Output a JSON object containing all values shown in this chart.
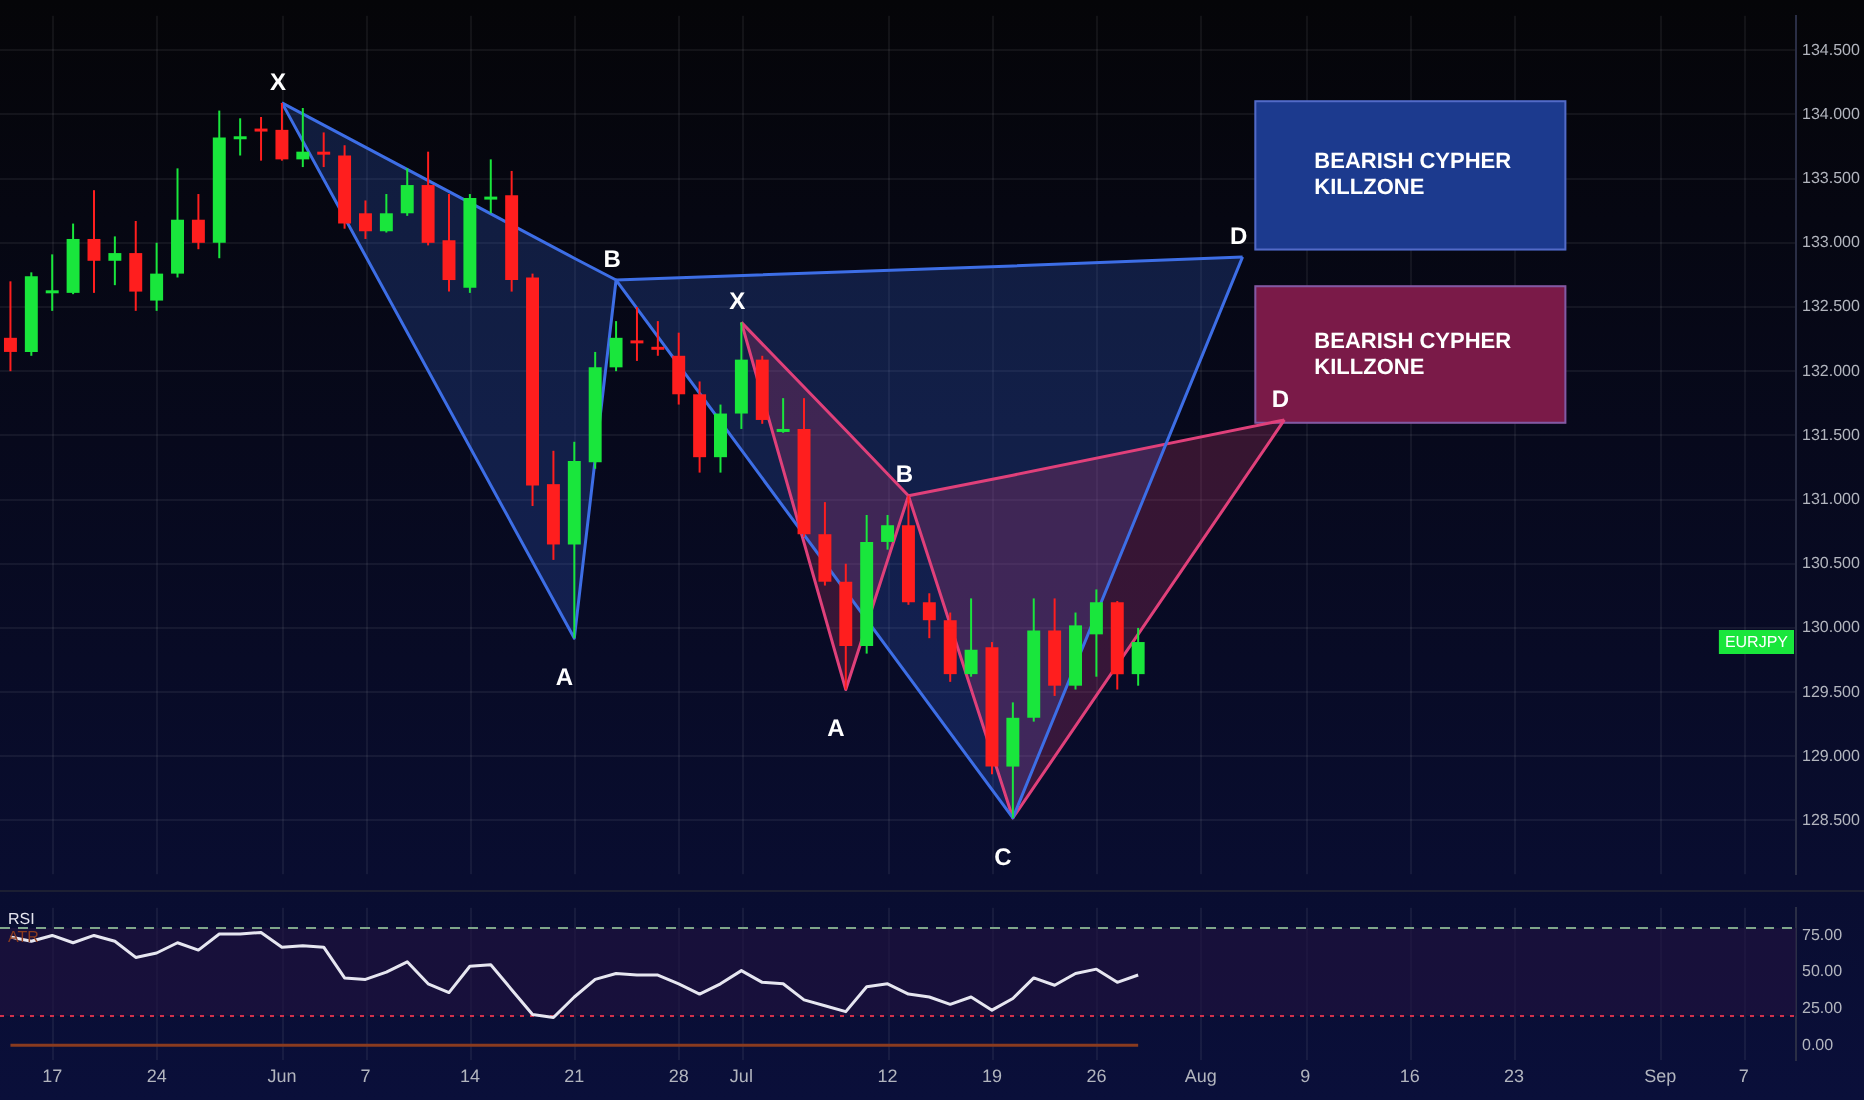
{
  "chart_data": [
    {
      "type": "candlestick",
      "categories": [
        null,
        null,
        null,
        null,
        null,
        null,
        null,
        null,
        null,
        null,
        null,
        null,
        null,
        null,
        null,
        null,
        null,
        null,
        null,
        null,
        null,
        null,
        null,
        null,
        null,
        null,
        null,
        null,
        null,
        null,
        null,
        null,
        null,
        null,
        null,
        null,
        null,
        null,
        null,
        null,
        null,
        null,
        null,
        null,
        null,
        null,
        null,
        null,
        null,
        null,
        null,
        null,
        null,
        null,
        null,
        null,
        null,
        null,
        null,
        null,
        null,
        null,
        null,
        null,
        null,
        null,
        null,
        null,
        null,
        null,
        null,
        null,
        null,
        null,
        null,
        null,
        null,
        null,
        null,
        null,
        null,
        null,
        null,
        null,
        null,
        null
      ],
      "ohlc": [
        [
          132.26,
          132.7,
          132.0,
          132.15
        ],
        [
          132.15,
          132.77,
          132.12,
          132.74
        ],
        [
          132.62,
          132.91,
          132.47,
          132.63
        ],
        [
          132.61,
          133.15,
          132.6,
          133.03
        ],
        [
          133.03,
          133.41,
          132.61,
          132.86
        ],
        [
          132.86,
          133.05,
          132.67,
          132.92
        ],
        [
          132.92,
          133.17,
          132.47,
          132.62
        ],
        [
          132.55,
          133.0,
          132.47,
          132.76
        ],
        [
          132.76,
          133.58,
          132.73,
          133.18
        ],
        [
          133.18,
          133.38,
          132.95,
          133.0
        ],
        [
          133.0,
          134.03,
          132.88,
          133.82
        ],
        [
          133.82,
          133.97,
          133.68,
          133.83
        ],
        [
          133.89,
          133.98,
          133.64,
          133.88
        ],
        [
          133.88,
          134.09,
          133.64,
          133.65
        ],
        [
          133.65,
          134.05,
          133.59,
          133.71
        ],
        [
          133.71,
          133.86,
          133.59,
          133.69
        ],
        [
          133.68,
          133.76,
          133.11,
          133.15
        ],
        [
          133.23,
          133.33,
          133.03,
          133.09
        ],
        [
          133.09,
          133.38,
          133.08,
          133.23
        ],
        [
          133.23,
          133.58,
          133.21,
          133.45
        ],
        [
          133.45,
          133.71,
          132.98,
          133.0
        ],
        [
          133.02,
          133.38,
          132.62,
          132.71
        ],
        [
          132.65,
          133.38,
          132.61,
          133.35
        ],
        [
          133.35,
          133.65,
          133.23,
          133.36
        ],
        [
          133.37,
          133.56,
          132.62,
          132.71
        ],
        [
          132.73,
          132.76,
          130.95,
          131.11
        ],
        [
          131.12,
          131.38,
          130.53,
          130.65
        ],
        [
          130.65,
          131.45,
          129.92,
          131.3
        ],
        [
          131.29,
          132.15,
          131.24,
          132.03
        ],
        [
          132.03,
          132.39,
          132.0,
          132.26
        ],
        [
          132.24,
          132.5,
          132.08,
          132.22
        ],
        [
          132.19,
          132.39,
          132.12,
          132.17
        ],
        [
          132.12,
          132.3,
          131.74,
          131.82
        ],
        [
          131.82,
          131.92,
          131.21,
          131.33
        ],
        [
          131.33,
          131.74,
          131.21,
          131.67
        ],
        [
          131.67,
          132.38,
          131.55,
          132.09
        ],
        [
          132.09,
          132.12,
          131.59,
          131.62
        ],
        [
          131.54,
          131.79,
          131.52,
          131.55
        ],
        [
          131.55,
          131.79,
          130.71,
          130.73
        ],
        [
          130.73,
          130.98,
          130.33,
          130.36
        ],
        [
          130.36,
          130.5,
          129.52,
          129.86
        ],
        [
          129.86,
          130.88,
          129.8,
          130.67
        ],
        [
          130.67,
          130.88,
          130.61,
          130.8
        ],
        [
          130.8,
          131.03,
          130.18,
          130.2
        ],
        [
          130.2,
          130.27,
          129.92,
          130.06
        ],
        [
          130.06,
          130.12,
          129.58,
          129.64
        ],
        [
          129.64,
          130.23,
          129.62,
          129.83
        ],
        [
          129.85,
          129.89,
          128.86,
          128.92
        ],
        [
          128.92,
          129.42,
          128.52,
          129.3
        ],
        [
          129.3,
          130.23,
          129.27,
          129.98
        ],
        [
          129.98,
          130.23,
          129.47,
          129.55
        ],
        [
          129.55,
          130.12,
          129.52,
          130.02
        ],
        [
          129.95,
          130.3,
          129.62,
          130.2
        ],
        [
          130.2,
          130.21,
          129.52,
          129.64
        ],
        [
          129.64,
          130.0,
          129.55,
          129.89
        ],
        null,
        null,
        null,
        null,
        null,
        null,
        null,
        null,
        null,
        null,
        null,
        null,
        null,
        null,
        null,
        null,
        null,
        null,
        null,
        null,
        null,
        null,
        null,
        null,
        null,
        null,
        null,
        null,
        null,
        null,
        null
      ],
      "series": [
        {
          "type": "line",
          "color": "#3d6ee6",
          "values": [
            null,
            null,
            null,
            null,
            null,
            null,
            null,
            null,
            null,
            null,
            null,
            null,
            null,
            134.09,
            null,
            null,
            null,
            null,
            null,
            null,
            null,
            null,
            null,
            null,
            null,
            null,
            null,
            129.92,
            null,
            132.71,
            null,
            null,
            null,
            null,
            null,
            null,
            null,
            null,
            null,
            null,
            null,
            null,
            null,
            null,
            null,
            null,
            null,
            null,
            128.52,
            null,
            null,
            null,
            null,
            null,
            null,
            null,
            null,
            null,
            null,
            132.89,
            null,
            null,
            null,
            null,
            null,
            null,
            null,
            null,
            null,
            null,
            null,
            null,
            null,
            null,
            null,
            null,
            null,
            null,
            null,
            null,
            null,
            null,
            null,
            null,
            null,
            null
          ],
          "lower": [
            null,
            null,
            null,
            null,
            null,
            null,
            null,
            null,
            null,
            null,
            null,
            null,
            null,
            134.09,
            null,
            null,
            null,
            null,
            null,
            null,
            null,
            null,
            null,
            null,
            null,
            null,
            null,
            129.92,
            null,
            132.71,
            null,
            null,
            null,
            null,
            null,
            null,
            null,
            null,
            null,
            null,
            null,
            null,
            null,
            null,
            null,
            null,
            null,
            null,
            128.52,
            null,
            null,
            null,
            null,
            null,
            null,
            null,
            null,
            null,
            null,
            132.89,
            null,
            null,
            null,
            null,
            null,
            null,
            null,
            null,
            null,
            null,
            null,
            null,
            null,
            null,
            null,
            null,
            null,
            null,
            null,
            null,
            null,
            null,
            null,
            null,
            null,
            null
          ],
          "upper": [
            null,
            null,
            null,
            null,
            null,
            null,
            null,
            null,
            null,
            null,
            null,
            null,
            null,
            134.09,
            null,
            null,
            null,
            null,
            null,
            null,
            null,
            null,
            null,
            null,
            null,
            null,
            null,
            132.88,
            null,
            132.71,
            null,
            null,
            null,
            null,
            null,
            null,
            null,
            null,
            null,
            null,
            null,
            null,
            null,
            null,
            null,
            null,
            null,
            null,
            132.82,
            null,
            null,
            null,
            null,
            null,
            null,
            null,
            null,
            null,
            null,
            132.89,
            null,
            null,
            null,
            null,
            null,
            null,
            null,
            null,
            null,
            null,
            null,
            null,
            null,
            null,
            null,
            null,
            null,
            null,
            null,
            null,
            null,
            null,
            null,
            null,
            null,
            null
          ]
        },
        {
          "type": "line",
          "color": "#e0407a",
          "values": [
            null,
            null,
            null,
            null,
            null,
            null,
            null,
            null,
            null,
            null,
            null,
            null,
            null,
            null,
            null,
            null,
            null,
            null,
            null,
            null,
            null,
            null,
            null,
            null,
            null,
            null,
            null,
            null,
            null,
            null,
            null,
            null,
            null,
            null,
            null,
            132.38,
            null,
            null,
            null,
            null,
            129.52,
            null,
            null,
            131.03,
            null,
            null,
            null,
            null,
            128.52,
            null,
            null,
            null,
            null,
            null,
            null,
            null,
            null,
            null,
            null,
            null,
            null,
            131.62,
            null,
            null,
            null,
            null,
            null,
            null,
            null,
            null,
            null,
            null,
            null,
            null,
            null,
            null,
            null,
            null,
            null,
            null,
            null,
            null,
            null,
            null,
            null,
            null
          ],
          "lower": [
            null,
            null,
            null,
            null,
            null,
            null,
            null,
            null,
            null,
            null,
            null,
            null,
            null,
            null,
            null,
            null,
            null,
            null,
            null,
            null,
            null,
            null,
            null,
            null,
            null,
            null,
            null,
            null,
            null,
            null,
            null,
            null,
            null,
            null,
            null,
            132.38,
            null,
            null,
            null,
            null,
            129.52,
            null,
            null,
            131.03,
            null,
            null,
            null,
            null,
            128.52,
            null,
            null,
            null,
            null,
            null,
            null,
            null,
            null,
            null,
            null,
            null,
            null,
            131.62,
            null,
            null,
            null,
            null,
            null,
            null,
            null,
            null,
            null,
            null,
            null,
            null,
            null,
            null,
            null,
            null,
            null,
            null,
            null,
            null,
            null,
            null,
            null,
            null
          ],
          "upper": [
            null,
            null,
            null,
            null,
            null,
            null,
            null,
            null,
            null,
            null,
            null,
            null,
            null,
            null,
            null,
            null,
            null,
            null,
            null,
            null,
            null,
            null,
            null,
            null,
            null,
            null,
            null,
            null,
            null,
            null,
            null,
            null,
            null,
            null,
            null,
            132.38,
            null,
            null,
            null,
            null,
            131.54,
            null,
            null,
            131.03,
            null,
            null,
            null,
            null,
            131.19,
            null,
            null,
            null,
            null,
            null,
            null,
            null,
            null,
            null,
            null,
            null,
            null,
            131.62,
            null,
            null,
            null,
            null,
            null,
            null,
            null,
            null,
            null,
            null,
            null,
            null,
            null,
            null,
            null,
            null,
            null,
            null,
            null,
            null,
            null,
            null,
            null,
            null
          ]
        }
      ],
      "ylim": [
        128.08,
        134.77
      ],
      "yticks": [
        {
          "value": 128.5,
          "label": "128.500"
        },
        {
          "value": 129,
          "label": "129.000"
        },
        {
          "value": 129.5,
          "label": "129.500"
        },
        {
          "value": 130,
          "label": "130.000"
        },
        {
          "value": 130.5,
          "label": "130.500"
        },
        {
          "value": 131,
          "label": "131.000"
        },
        {
          "value": 131.5,
          "label": "131.500"
        },
        {
          "value": 132,
          "label": "132.000"
        },
        {
          "value": 132.5,
          "label": "132.500"
        },
        {
          "value": 133,
          "label": "133.000"
        },
        {
          "value": 133.5,
          "label": "133.500"
        },
        {
          "value": 134,
          "label": "134.000"
        },
        {
          "value": 134.5,
          "label": "134.500"
        }
      ],
      "tick_labels": "y",
      "grid": true,
      "marker": "none",
      "bands": [
        {
          "axis": "y",
          "from": 132.94,
          "to": 134.11,
          "label": "BEARISH CYPHER KILLZONE",
          "color": "#1c3a8e"
        },
        {
          "axis": "y",
          "from": 131.59,
          "to": 132.67,
          "label": "BEARISH CYPHER KILLZONE",
          "color": "#7a1a48"
        }
      ],
      "annotations": [
        {
          "text": "X",
          "y": 134.09
        },
        {
          "text": "A",
          "y": 129.92
        },
        {
          "text": "B",
          "y": 132.71
        },
        {
          "text": "C",
          "y": 128.52
        },
        {
          "text": "D",
          "y": 132.89
        },
        {
          "text": "X",
          "y": 132.38
        },
        {
          "text": "A",
          "y": 129.52
        },
        {
          "text": "B",
          "y": 131.03
        },
        {
          "text": "D",
          "y": 131.62
        },
        "EURJPY"
      ]
    },
    {
      "type": "line",
      "categories": [
        null,
        null,
        "17",
        null,
        null,
        null,
        null,
        "24",
        null,
        null,
        null,
        null,
        null,
        "Jun",
        null,
        null,
        null,
        "7",
        null,
        null,
        null,
        null,
        "14",
        null,
        null,
        null,
        null,
        "21",
        null,
        null,
        null,
        null,
        "28",
        null,
        null,
        "Jul",
        null,
        null,
        null,
        null,
        null,
        null,
        "12",
        null,
        null,
        null,
        null,
        "19",
        null,
        null,
        null,
        null,
        "26",
        null,
        null,
        null,
        null,
        "Aug",
        null,
        null,
        null,
        null,
        "9",
        null,
        null,
        null,
        null,
        "16",
        null,
        null,
        null,
        null,
        "23",
        null,
        null,
        null,
        null,
        null,
        null,
        "Sep",
        null,
        null,
        null,
        "7",
        null,
        null
      ],
      "series": [
        {
          "name": "RSI",
          "color": "#e6e6f0",
          "values": [
            74,
            71,
            75,
            70,
            75,
            71,
            60,
            63,
            70,
            65,
            76,
            76,
            77,
            67,
            68,
            67,
            46,
            45,
            50,
            57,
            42,
            36,
            54,
            55,
            38,
            21,
            19,
            33,
            45,
            49,
            48,
            48,
            42,
            35,
            42,
            51,
            43,
            42,
            31,
            27,
            23,
            40,
            42,
            35,
            33,
            28,
            33,
            24,
            32,
            46,
            41,
            49,
            52,
            43,
            48,
            null,
            null,
            null,
            null,
            null,
            null,
            null,
            null,
            null,
            null,
            null,
            null,
            null,
            null,
            null,
            null,
            null,
            null,
            null,
            null,
            null,
            null,
            null,
            null,
            null,
            null,
            null,
            null,
            null,
            null,
            null
          ]
        },
        {
          "name": "ATR",
          "color": "#8a3b1f",
          "values": [
            0,
            0,
            0,
            0,
            0,
            0,
            0,
            0,
            0,
            0,
            0,
            0,
            0,
            0,
            0,
            0,
            0,
            0,
            0,
            0,
            0,
            0,
            0,
            0,
            0,
            0,
            0,
            0,
            0,
            0,
            0,
            0,
            0,
            0,
            0,
            0,
            0,
            0,
            0,
            0,
            0,
            0,
            0,
            0,
            0,
            0,
            0,
            0,
            0,
            0,
            0,
            0,
            0,
            0,
            0,
            null,
            null,
            null,
            null,
            null,
            null,
            null,
            null,
            null,
            null,
            null,
            null,
            null,
            null,
            null,
            null,
            null,
            null,
            null,
            null,
            null,
            null,
            null,
            null,
            null,
            null,
            null,
            null,
            null,
            null,
            null
          ]
        }
      ],
      "ylim": [
        -10,
        94
      ],
      "yticks": [
        {
          "value": 0,
          "label": "0.00"
        },
        {
          "value": 25,
          "label": "25.00"
        },
        {
          "value": 50,
          "label": "50.00"
        },
        {
          "value": 75,
          "label": "75.00"
        }
      ],
      "grid": "x",
      "legend": "top left",
      "marker": "none",
      "ref_lines": [
        {
          "axis": "y",
          "value": 80,
          "color": "#7fa68a",
          "line_style": "dashed"
        },
        {
          "axis": "y",
          "value": 20,
          "color": "#d0304a",
          "line_style": "dotted"
        }
      ],
      "bands": [
        {
          "axis": "y",
          "from": 20,
          "to": 80,
          "color": "#22123f"
        }
      ]
    }
  ]
}
